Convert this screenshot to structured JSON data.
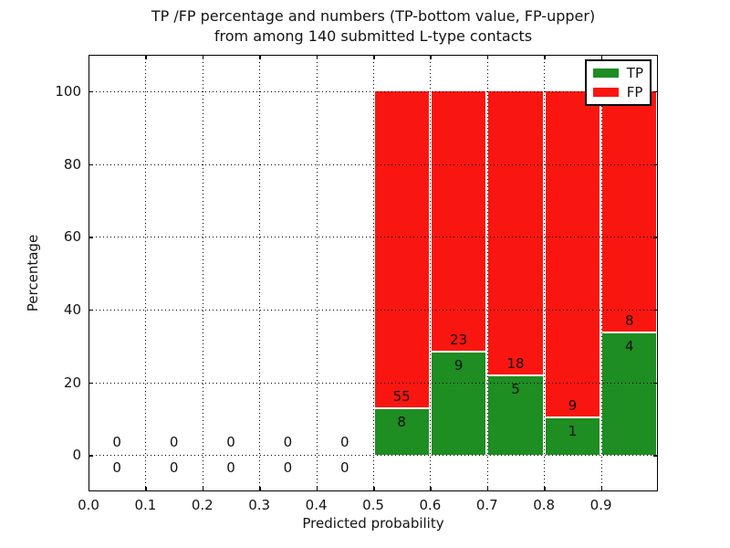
{
  "figure": {
    "title_line1": "TP /FP percentage and numbers (TP-bottom value, FP-upper)",
    "title_line2": "from among 140 submitted L-type contacts",
    "xlabel": "Predicted probability",
    "ylabel": "Percentage"
  },
  "legend": {
    "items": [
      {
        "label": "TP",
        "color": "#1e8d22"
      },
      {
        "label": "FP",
        "color": "#fa1610"
      }
    ]
  },
  "chart_data": {
    "type": "bar",
    "subtype": "stacked_percentage_histogram",
    "title": "TP /FP percentage and numbers (TP-bottom value, FP-upper) from among 140 submitted L-type contacts",
    "xlabel": "Predicted probability",
    "ylabel": "Percentage",
    "xlim": [
      0.0,
      1.0
    ],
    "ylim": [
      -10,
      110
    ],
    "xtick_values": [
      0.0,
      0.1,
      0.2,
      0.3,
      0.4,
      0.5,
      0.6,
      0.7,
      0.8,
      0.9
    ],
    "xtick_labels": [
      "0.0",
      "0.1",
      "0.2",
      "0.3",
      "0.4",
      "0.5",
      "0.6",
      "0.7",
      "0.8",
      "0.9"
    ],
    "ytick_values": [
      0,
      20,
      40,
      60,
      80,
      100
    ],
    "ytick_labels": [
      "0",
      "20",
      "40",
      "60",
      "80",
      "100"
    ],
    "grid": "dotted",
    "grid_above_bars": true,
    "legend_position": "upper right",
    "bin_edges": [
      0.0,
      0.1,
      0.2,
      0.3,
      0.4,
      0.5,
      0.6,
      0.7,
      0.8,
      0.9,
      1.0
    ],
    "series": [
      {
        "name": "TP",
        "color": "#1e8d22",
        "counts": [
          0,
          0,
          0,
          0,
          0,
          8,
          9,
          5,
          1,
          4
        ]
      },
      {
        "name": "FP",
        "color": "#fa1610",
        "counts": [
          0,
          0,
          0,
          0,
          0,
          55,
          23,
          18,
          9,
          8
        ]
      }
    ],
    "bar_total_percent": 100,
    "tp_percent_by_bin": [
      null,
      null,
      null,
      null,
      null,
      12.7,
      28.1,
      21.7,
      10.0,
      33.3
    ],
    "total_contacts": 140
  }
}
